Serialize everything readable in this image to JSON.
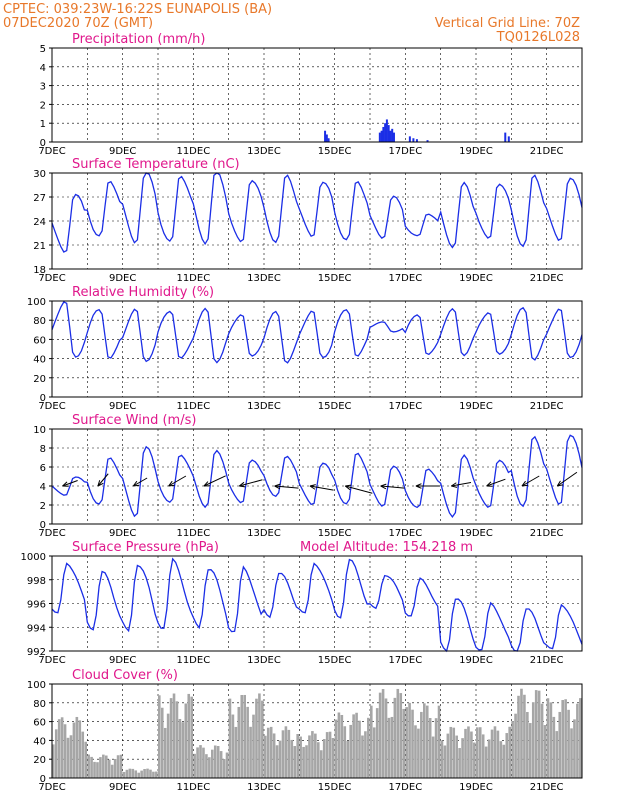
{
  "header": {
    "left_line1": "CPTEC:   039:23W-16:22S   EUNAPOLIS (BA)",
    "left_line2": "07DEC2020 70Z (GMT)",
    "right_line1": "Vertical Grid Line: 70Z",
    "right_line2": "TQ0126L028"
  },
  "colors": {
    "header": "#e8782a",
    "panel_title": "#e0188c",
    "series_line": "#1b2ee6",
    "precip_bar": "#1b2ee6",
    "cloud_fill": "#a6a6a6",
    "wind_arrow": "#000000"
  },
  "x_axis": {
    "start": "07DEC2020",
    "n_days": 15,
    "labels": [
      "7DEC",
      "9DEC",
      "11DEC",
      "13DEC",
      "15DEC",
      "17DEC",
      "19DEC",
      "21DEC"
    ],
    "label_days": [
      0,
      2,
      4,
      6,
      8,
      10,
      12,
      14
    ]
  },
  "chart_data": [
    {
      "type": "bar",
      "title": "Precipitation (mm/h)",
      "ylim": [
        0,
        5
      ],
      "yticks": [
        "0",
        "1",
        "2",
        "3",
        "4",
        "5"
      ],
      "x_day": [
        7.7,
        7.75,
        7.8,
        9.25,
        9.3,
        9.35,
        9.4,
        9.45,
        9.5,
        9.55,
        9.6,
        9.65,
        10.1,
        10.2,
        10.3,
        10.6,
        12.8,
        12.9
      ],
      "values": [
        0.6,
        0.4,
        0.2,
        0.5,
        0.6,
        0.8,
        1.0,
        1.2,
        0.9,
        0.6,
        0.7,
        0.5,
        0.3,
        0.2,
        0.15,
        0.1,
        0.5,
        0.3
      ]
    },
    {
      "type": "line",
      "title": "Surface Temperature (nC)",
      "ylim": [
        18,
        30
      ],
      "yticks": [
        "18",
        "21",
        "24",
        "27",
        "30"
      ],
      "daily_min": [
        20,
        22,
        21.5,
        21,
        21.5,
        21,
        21.5,
        22,
        21.5,
        22,
        22,
        21,
        21.5,
        21,
        21.5
      ],
      "daily_max": [
        27.5,
        29,
        30,
        30,
        30,
        29.5,
        29.5,
        29,
        29,
        27,
        25,
        28.5,
        29,
        29.5,
        29.5
      ]
    },
    {
      "type": "line",
      "title": "Relative Humidity (%)",
      "ylim": [
        0,
        100
      ],
      "yticks": [
        "0",
        "20",
        "40",
        "60",
        "80",
        "100"
      ],
      "daily_min": [
        40,
        40,
        38,
        38,
        38,
        40,
        37,
        40,
        42,
        68,
        42,
        45,
        42,
        40,
        40
      ],
      "daily_max": [
        100,
        92,
        90,
        92,
        90,
        88,
        88,
        90,
        92,
        78,
        88,
        90,
        90,
        92,
        92
      ]
    },
    {
      "type": "line",
      "title": "Surface Wind (m/s)",
      "ylim": [
        0,
        10
      ],
      "yticks": [
        "0",
        "2",
        "4",
        "6",
        "8",
        "10"
      ],
      "daily_max": [
        5,
        7,
        8,
        7.5,
        7.5,
        7,
        7,
        6.5,
        7.5,
        6,
        6,
        7,
        7,
        9,
        9.5
      ],
      "daily_min": [
        3,
        2,
        1,
        2,
        2,
        2,
        3,
        2,
        2,
        2,
        1.5,
        1,
        1.5,
        2,
        2
      ],
      "arrow_day": [
        0.3,
        1.3,
        2.3,
        3.3,
        4.3,
        5.3,
        6.3,
        7.3,
        8.3,
        9.3,
        10.3,
        11.3,
        12.3,
        13.3,
        14.3
      ],
      "arrow_dir_deg": [
        20,
        50,
        30,
        30,
        25,
        15,
        -5,
        -10,
        -15,
        -5,
        0,
        10,
        20,
        30,
        35
      ],
      "arrow_speed": [
        4,
        4,
        4,
        5,
        6,
        6,
        6,
        6,
        7,
        6,
        6,
        5,
        5,
        5,
        6
      ]
    },
    {
      "type": "line",
      "title": "Surface Pressure (hPa)",
      "subtitle": "Model Altitude: 154.218  m",
      "ylim": [
        992,
        1000
      ],
      "yticks": [
        "992",
        "994",
        "996",
        "998",
        "1000"
      ],
      "daily_max": [
        999.5,
        998.5,
        999.5,
        999.5,
        999,
        999,
        998.5,
        999.5,
        999.5,
        998.5,
        998,
        996.5,
        996,
        995.5,
        996
      ],
      "daily_min": [
        995,
        994,
        993.5,
        994,
        994,
        993.5,
        995,
        995,
        995,
        995.5,
        995,
        992,
        992,
        992,
        992
      ]
    },
    {
      "type": "area",
      "title": "Cloud Cover (%)",
      "ylim": [
        0,
        100
      ],
      "yticks": [
        "0",
        "20",
        "40",
        "60",
        "80",
        "100"
      ],
      "daily_level": [
        65,
        25,
        10,
        90,
        35,
        90,
        55,
        50,
        70,
        95,
        80,
        55,
        55,
        95,
        85
      ]
    }
  ]
}
